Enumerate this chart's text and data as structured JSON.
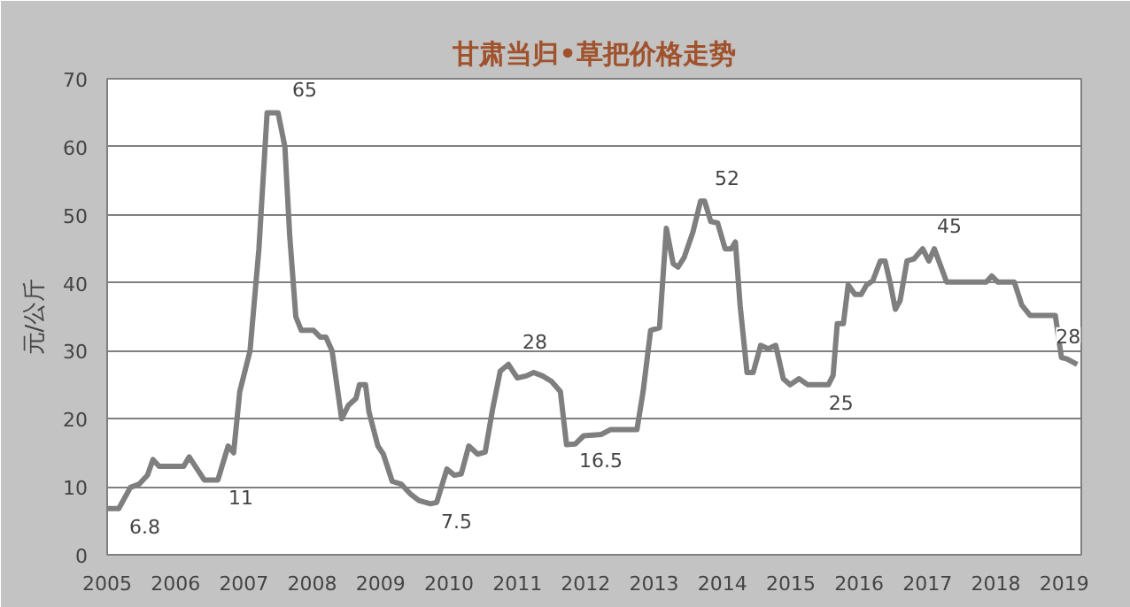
{
  "chart_data": {
    "type": "line",
    "title": "甘肃当归•草把价格走势",
    "ylabel": "元/公斤",
    "xlim": [
      2005,
      2019.25
    ],
    "xticks": [
      2005,
      2006,
      2007,
      2008,
      2009,
      2010,
      2011,
      2012,
      2013,
      2014,
      2015,
      2016,
      2017,
      2018,
      2019
    ],
    "ylim": [
      0,
      70
    ],
    "yticks": [
      0,
      10,
      20,
      30,
      40,
      50,
      60,
      70
    ],
    "grid": "y",
    "marker": "none",
    "line_style": "solid",
    "series": [
      {
        "color": "#7f7f7f",
        "x": [
          2005.0,
          2005.17,
          2005.34,
          2005.47,
          2005.59,
          2005.67,
          2005.76,
          2006.12,
          2006.2,
          2006.42,
          2006.62,
          2006.77,
          2006.85,
          2006.94,
          2007.09,
          2007.22,
          2007.34,
          2007.5,
          2007.6,
          2007.67,
          2007.76,
          2007.84,
          2008.02,
          2008.12,
          2008.2,
          2008.29,
          2008.43,
          2008.53,
          2008.64,
          2008.69,
          2008.78,
          2008.83,
          2008.96,
          2009.04,
          2009.17,
          2009.3,
          2009.43,
          2009.56,
          2009.73,
          2009.82,
          2009.97,
          2010.08,
          2010.18,
          2010.29,
          2010.42,
          2010.53,
          2010.64,
          2010.75,
          2010.87,
          2011.0,
          2011.13,
          2011.24,
          2011.37,
          2011.5,
          2011.63,
          2011.72,
          2011.85,
          2011.97,
          2012.23,
          2012.36,
          2012.75,
          2012.84,
          2012.95,
          2013.08,
          2013.18,
          2013.28,
          2013.35,
          2013.44,
          2013.57,
          2013.68,
          2013.74,
          2013.83,
          2013.93,
          2014.04,
          2014.13,
          2014.19,
          2014.26,
          2014.36,
          2014.45,
          2014.56,
          2014.67,
          2014.78,
          2014.89,
          2014.99,
          2015.12,
          2015.25,
          2015.55,
          2015.62,
          2015.68,
          2015.77,
          2015.84,
          2015.94,
          2016.03,
          2016.11,
          2016.2,
          2016.31,
          2016.38,
          2016.46,
          2016.53,
          2016.6,
          2016.7,
          2016.8,
          2016.93,
          2017.02,
          2017.1,
          2017.28,
          2017.86,
          2017.94,
          2018.03,
          2018.27,
          2018.38,
          2018.5,
          2018.87,
          2018.96,
          2019.04,
          2019.19
        ],
        "values": [
          6.8,
          6.8,
          9.9,
          10.4,
          11.7,
          14,
          13,
          13,
          14.4,
          11,
          11,
          16,
          15,
          24,
          30,
          45,
          65,
          65,
          60,
          47,
          35,
          33,
          33,
          32,
          32,
          30,
          20,
          22,
          23,
          25,
          25,
          21,
          16,
          14.8,
          10.8,
          10.4,
          9,
          8,
          7.5,
          7.7,
          12.6,
          11.7,
          11.9,
          16,
          14.8,
          15.1,
          21.5,
          27,
          28,
          26,
          26.3,
          26.8,
          26.3,
          25.5,
          24,
          16.2,
          16.3,
          17.5,
          17.7,
          18.4,
          18.4,
          24,
          33,
          33.4,
          48,
          42.8,
          42.3,
          43.7,
          47.5,
          52,
          52,
          49,
          48.8,
          45,
          45,
          46,
          36.6,
          26.8,
          26.8,
          30.8,
          30.3,
          30.8,
          25.9,
          25,
          25.9,
          25,
          25,
          26.4,
          34,
          34,
          39.7,
          38.3,
          38.3,
          39.7,
          40.3,
          43.2,
          43.2,
          39.7,
          36.1,
          37.4,
          43.2,
          43.5,
          45,
          43.2,
          45,
          40.1,
          40.1,
          41,
          40.1,
          40.1,
          36.7,
          35.2,
          35.2,
          29,
          28.8,
          28
        ]
      }
    ],
    "annotations": [
      {
        "text": "6.8",
        "x": 2005.17,
        "y": 6.8
      },
      {
        "text": "11",
        "x": 2006.62,
        "y": 11
      },
      {
        "text": "65",
        "x": 2007.5,
        "y": 65
      },
      {
        "text": "7.5",
        "x": 2009.73,
        "y": 7.5
      },
      {
        "text": "28",
        "x": 2010.87,
        "y": 28
      },
      {
        "text": "16.5",
        "x": 2011.75,
        "y": 16.5
      },
      {
        "text": "52",
        "x": 2013.68,
        "y": 52
      },
      {
        "text": "25",
        "x": 2015.4,
        "y": 25
      },
      {
        "text": "45",
        "x": 2016.93,
        "y": 45
      },
      {
        "text": "28",
        "x": 2019.19,
        "y": 28
      }
    ]
  }
}
